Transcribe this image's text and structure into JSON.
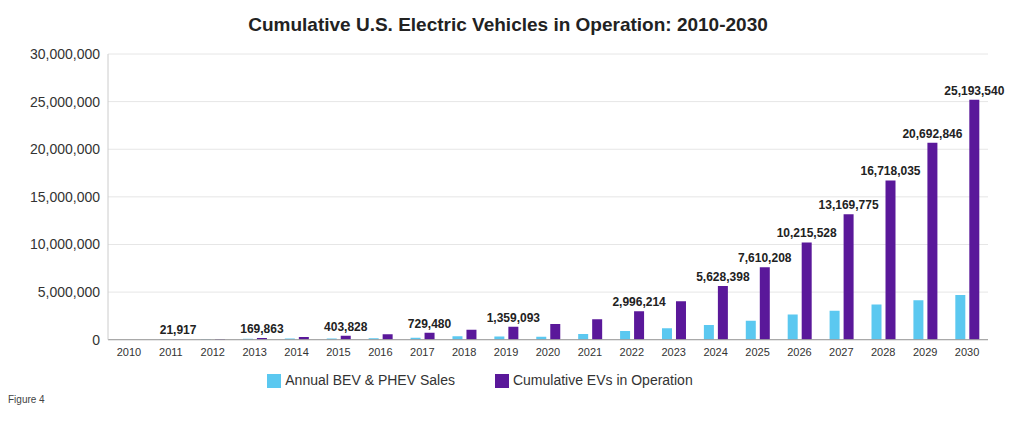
{
  "chart_data": {
    "type": "bar",
    "title": "Cumulative U.S. Electric Vehicles in Operation: 2010-2030",
    "annotations": [
      "Figure 4"
    ],
    "categories": [
      "2010",
      "2011",
      "2012",
      "2013",
      "2014",
      "2015",
      "2016",
      "2017",
      "2018",
      "2019",
      "2020",
      "2021",
      "2022",
      "2023",
      "2024",
      "2025",
      "2026",
      "2027",
      "2028",
      "2029",
      "2030"
    ],
    "series": [
      {
        "name": "Annual BEV & PHEV Sales",
        "color": "#5bc8f0",
        "values": [
          0,
          18000,
          53000,
          97000,
          119000,
          114000,
          158000,
          195000,
          360000,
          327000,
          308000,
          608000,
          918000,
          1200000,
          1550000,
          2000000,
          2650000,
          3050000,
          3700000,
          4150000,
          4700000
        ]
      },
      {
        "name": "Cumulative EVs in Operation",
        "color": "#5a189a",
        "values": [
          0,
          21917,
          75000,
          169863,
          290000,
          403828,
          560000,
          729480,
          1050000,
          1359093,
          1650000,
          2150000,
          2996214,
          4050000,
          5628398,
          7610208,
          10215528,
          13169775,
          16718035,
          20692846,
          25193540
        ],
        "value_labels": [
          null,
          "21,917",
          null,
          "169,863",
          null,
          "403,828",
          null,
          "729,480",
          null,
          "1,359,093",
          null,
          null,
          "2,996,214",
          null,
          "5,628,398",
          "7,610,208",
          "10,215,528",
          "13,169,775",
          "16,718,035",
          "20,692,846",
          "25,193,540"
        ]
      }
    ],
    "ylim": [
      0,
      30000000
    ],
    "yticks": [
      0,
      {
        "value": 5000000,
        "label": "5,000,000"
      },
      {
        "value": 10000000,
        "label": "10,000,000"
      },
      {
        "value": 15000000,
        "label": "15,000,000"
      },
      {
        "value": 20000000,
        "label": "20,000,000"
      },
      {
        "value": 25000000,
        "label": "25,000,000"
      },
      {
        "value": 30000000,
        "label": "30,000,000"
      }
    ],
    "grid": true,
    "legend": "bottom",
    "data_labels": true
  }
}
